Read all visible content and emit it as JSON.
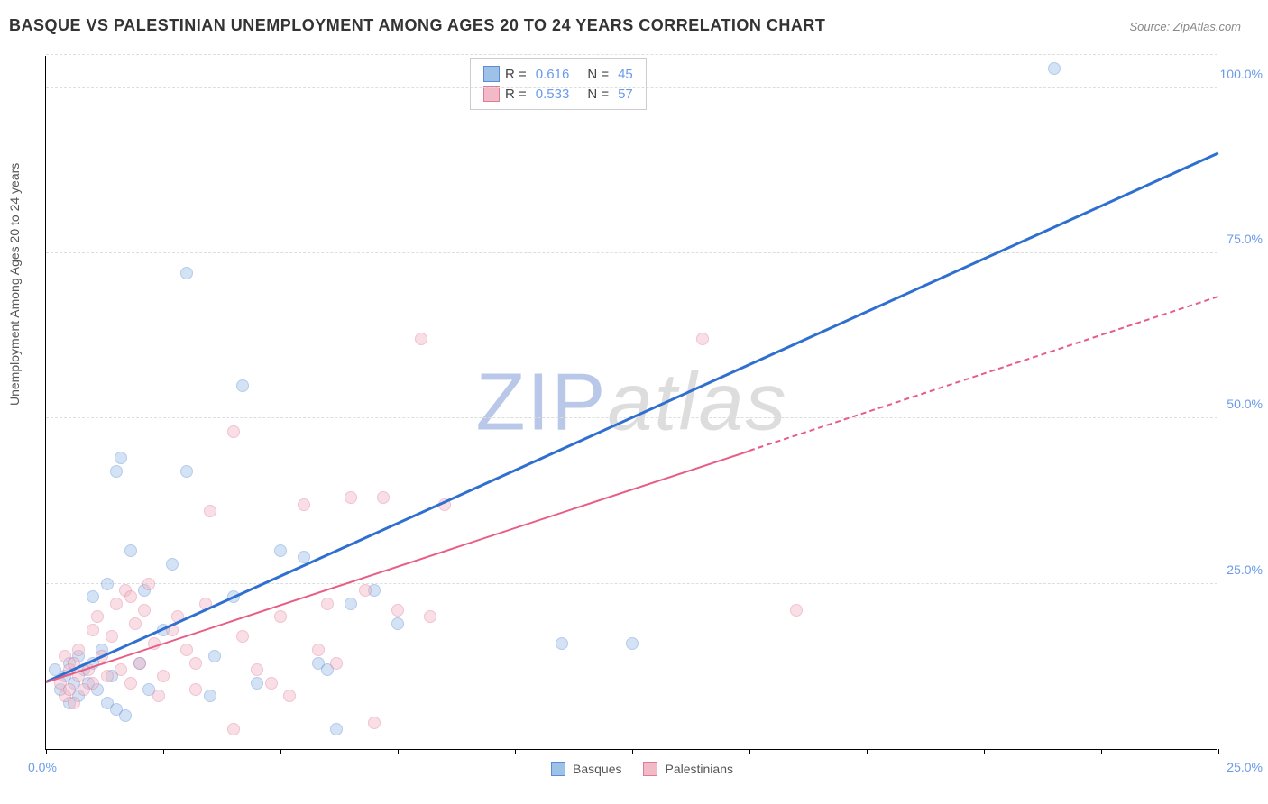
{
  "title": "BASQUE VS PALESTINIAN UNEMPLOYMENT AMONG AGES 20 TO 24 YEARS CORRELATION CHART",
  "source": "Source: ZipAtlas.com",
  "ylabel": "Unemployment Among Ages 20 to 24 years",
  "watermark": {
    "zip": "ZIP",
    "atlas": "atlas"
  },
  "chart": {
    "type": "scatter",
    "xlim": [
      0,
      25
    ],
    "ylim": [
      0,
      105
    ],
    "yticks": [
      25,
      50,
      75,
      100
    ],
    "ytick_labels": [
      "25.0%",
      "50.0%",
      "75.0%",
      "100.0%"
    ],
    "xticks": [
      0,
      2.5,
      5,
      7.5,
      10,
      12.5,
      15,
      17.5,
      20,
      22.5,
      25
    ],
    "x_label_min": "0.0%",
    "x_label_max": "25.0%",
    "grid_color": "#dddddd",
    "point_radius": 7,
    "point_opacity": 0.45,
    "series": [
      {
        "name": "Basques",
        "color_fill": "#9ec1e8",
        "color_stroke": "#5a8dd6",
        "r": "0.616",
        "n": "45",
        "trend": {
          "x1": 0,
          "y1": 10,
          "x2": 25,
          "y2": 90,
          "color": "#2f6fd0",
          "width": 2.5,
          "extrapolate_from_x": 25
        },
        "points": [
          [
            0.3,
            9
          ],
          [
            0.4,
            11
          ],
          [
            0.5,
            7
          ],
          [
            0.5,
            13
          ],
          [
            0.6,
            10
          ],
          [
            0.7,
            14
          ],
          [
            0.7,
            8
          ],
          [
            0.8,
            12
          ],
          [
            0.9,
            10
          ],
          [
            1.0,
            13
          ],
          [
            1.0,
            23
          ],
          [
            1.1,
            9
          ],
          [
            1.2,
            15
          ],
          [
            1.3,
            7
          ],
          [
            1.3,
            25
          ],
          [
            1.4,
            11
          ],
          [
            1.5,
            42
          ],
          [
            1.5,
            6
          ],
          [
            1.6,
            44
          ],
          [
            1.8,
            30
          ],
          [
            2.0,
            13
          ],
          [
            2.1,
            24
          ],
          [
            2.2,
            9
          ],
          [
            2.5,
            18
          ],
          [
            2.7,
            28
          ],
          [
            3.0,
            42
          ],
          [
            3.0,
            72
          ],
          [
            3.5,
            8
          ],
          [
            3.6,
            14
          ],
          [
            4.0,
            23
          ],
          [
            4.2,
            55
          ],
          [
            4.5,
            10
          ],
          [
            5.0,
            30
          ],
          [
            5.5,
            29
          ],
          [
            5.8,
            13
          ],
          [
            6.0,
            12
          ],
          [
            6.2,
            3
          ],
          [
            6.5,
            22
          ],
          [
            7.0,
            24
          ],
          [
            7.5,
            19
          ],
          [
            11.0,
            16
          ],
          [
            12.5,
            16
          ],
          [
            21.5,
            103
          ],
          [
            0.2,
            12
          ],
          [
            1.7,
            5
          ]
        ]
      },
      {
        "name": "Palestinians",
        "color_fill": "#f2b9c7",
        "color_stroke": "#e07a96",
        "r": "0.533",
        "n": "57",
        "trend": {
          "x1": 0,
          "y1": 10,
          "x2": 15,
          "y2": 45,
          "color": "#e85d85",
          "width": 2,
          "extrapolate_from_x": 15,
          "extrapolate_to_x": 25
        },
        "points": [
          [
            0.3,
            10
          ],
          [
            0.4,
            8
          ],
          [
            0.5,
            12
          ],
          [
            0.5,
            9
          ],
          [
            0.6,
            13
          ],
          [
            0.7,
            11
          ],
          [
            0.7,
            15
          ],
          [
            0.8,
            9
          ],
          [
            0.9,
            12
          ],
          [
            1.0,
            10
          ],
          [
            1.0,
            18
          ],
          [
            1.1,
            20
          ],
          [
            1.2,
            14
          ],
          [
            1.3,
            11
          ],
          [
            1.4,
            17
          ],
          [
            1.5,
            22
          ],
          [
            1.6,
            12
          ],
          [
            1.7,
            24
          ],
          [
            1.8,
            10
          ],
          [
            1.9,
            19
          ],
          [
            2.0,
            13
          ],
          [
            2.1,
            21
          ],
          [
            2.3,
            16
          ],
          [
            2.5,
            11
          ],
          [
            2.7,
            18
          ],
          [
            2.8,
            20
          ],
          [
            3.0,
            15
          ],
          [
            3.2,
            9
          ],
          [
            3.4,
            22
          ],
          [
            3.5,
            36
          ],
          [
            4.0,
            48
          ],
          [
            4.2,
            17
          ],
          [
            4.5,
            12
          ],
          [
            4.8,
            10
          ],
          [
            5.0,
            20
          ],
          [
            5.5,
            37
          ],
          [
            5.8,
            15
          ],
          [
            6.0,
            22
          ],
          [
            6.2,
            13
          ],
          [
            6.5,
            38
          ],
          [
            6.8,
            24
          ],
          [
            7.0,
            4
          ],
          [
            7.2,
            38
          ],
          [
            7.5,
            21
          ],
          [
            8.0,
            62
          ],
          [
            8.2,
            20
          ],
          [
            8.5,
            37
          ],
          [
            14.0,
            62
          ],
          [
            16.0,
            21
          ],
          [
            2.4,
            8
          ],
          [
            3.2,
            13
          ],
          [
            4.0,
            3
          ],
          [
            5.2,
            8
          ],
          [
            2.2,
            25
          ],
          [
            1.8,
            23
          ],
          [
            0.6,
            7
          ],
          [
            0.4,
            14
          ]
        ]
      }
    ]
  },
  "legend_bottom": [
    {
      "label": "Basques",
      "fill": "#9ec1e8",
      "stroke": "#5a8dd6"
    },
    {
      "label": "Palestinians",
      "fill": "#f2b9c7",
      "stroke": "#e07a96"
    }
  ]
}
